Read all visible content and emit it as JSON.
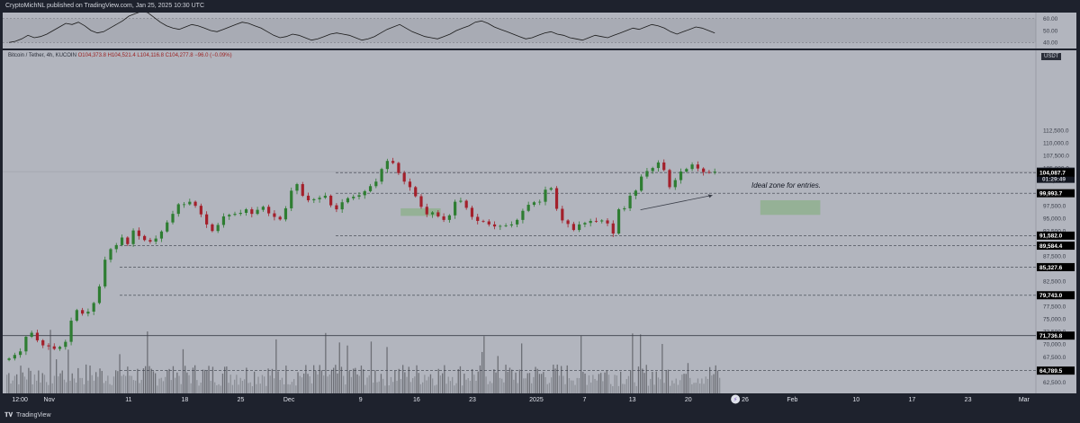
{
  "header": {
    "publish_text": "CryptoMichNL published on TradingView.com, Jan 25, 2025 10:30 UTC"
  },
  "legend": {
    "symbol": "Bitcoin / Tether, 4h, KUCOIN",
    "ohlc": "O104,373.8 H104,521.4 L104,116.8 C104,277.8 −96.0 (−0.09%)"
  },
  "annotation": {
    "text": "Ideal zone for entries."
  },
  "price_scale": {
    "currency": "USDT"
  },
  "footer": {
    "brand": "TradingView"
  },
  "colors": {
    "up": "#2e7d32",
    "down": "#a3202b",
    "pane_bg": "#b2b5be",
    "frame_bg": "#1e222d",
    "zone": "#8fb08f",
    "rsi_line": "#1a1a1a",
    "rsi_band": "#a2a5ad"
  },
  "rsi_scale": [
    "60.00",
    "50.00",
    "40.00"
  ],
  "rsi_data": [
    40,
    41,
    43,
    46,
    44,
    45,
    47,
    50,
    53,
    56,
    55,
    57,
    54,
    50,
    48,
    49,
    52,
    55,
    58,
    62,
    64,
    66,
    65,
    61,
    57,
    54,
    52,
    51,
    53,
    55,
    54,
    52,
    50,
    49,
    51,
    53,
    55,
    57,
    56,
    54,
    52,
    49,
    46,
    44,
    45,
    47,
    46,
    44,
    42,
    43,
    45,
    47,
    48,
    47,
    46,
    44,
    42,
    43,
    45,
    48,
    51,
    53,
    55,
    52,
    49,
    47,
    45,
    44,
    43,
    45,
    47,
    50,
    52,
    54,
    57,
    58,
    56,
    53,
    51,
    49,
    47,
    45,
    43,
    44,
    46,
    48,
    49,
    47,
    46,
    44,
    43,
    42,
    44,
    46,
    45,
    44,
    46,
    48,
    50,
    52,
    51,
    53,
    55,
    54,
    52,
    49,
    47,
    49,
    51,
    53,
    52,
    50,
    48
  ],
  "chart_data": {
    "type": "candlestick",
    "title": "Bitcoin / Tether, 4h, KUCOIN",
    "ylim": [
      61500,
      113000
    ],
    "y_ticks": [
      62500,
      65000,
      67500,
      70000,
      72500,
      75000,
      77500,
      80000,
      82500,
      85000,
      87500,
      90000,
      92500,
      95000,
      97500,
      100000,
      102500,
      105000,
      107500,
      110000,
      112500
    ],
    "x_ticks": [
      "12:00",
      "Nov",
      "11",
      "18",
      "25",
      "Dec",
      "9",
      "16",
      "23",
      "2025",
      "7",
      "13",
      "20",
      "26",
      "Feb",
      "10",
      "17",
      "23",
      "Mar"
    ],
    "x_tick_day_positions": [
      -7.5,
      -4,
      6,
      13,
      20,
      26,
      35,
      42,
      49,
      57,
      63,
      69,
      76,
      82,
      89,
      97,
      104,
      111,
      118
    ],
    "days_shown": [
      -10,
      122
    ],
    "highlighted_x_tick": "26",
    "price_closes": [
      67200,
      67900,
      68600,
      71500,
      72300,
      70800,
      69800,
      69600,
      69100,
      69500,
      70500,
      74700,
      76800,
      76100,
      76500,
      78200,
      81500,
      86800,
      88900,
      89700,
      91200,
      89900,
      92600,
      91500,
      90700,
      90400,
      91000,
      92400,
      94200,
      95900,
      97800,
      97800,
      98300,
      97500,
      95800,
      93800,
      92500,
      93700,
      95400,
      95700,
      95900,
      96100,
      96800,
      95900,
      96700,
      97300,
      96000,
      95300,
      94800,
      97000,
      100500,
      101800,
      99500,
      98600,
      98800,
      99100,
      99500,
      97600,
      96800,
      98200,
      99000,
      99300,
      99600,
      100400,
      101400,
      102300,
      104800,
      106400,
      106000,
      104000,
      102300,
      101200,
      99400,
      97300,
      95800,
      96200,
      95400,
      94700,
      95600,
      98300,
      98500,
      97100,
      95300,
      94500,
      94400,
      93800,
      93400,
      93500,
      93600,
      93800,
      94700,
      96500,
      97700,
      98200,
      98300,
      100700,
      101000,
      96900,
      94600,
      93900,
      92700,
      93800,
      94100,
      94500,
      94400,
      94600,
      94000,
      92000,
      96800,
      97000,
      99500,
      100500,
      103300,
      104400,
      105000,
      106100,
      104600,
      101200,
      102600,
      104300,
      104800,
      105700,
      104900,
      104200,
      104100,
      104277.8
    ],
    "price_levels": [
      {
        "value": 104277.8,
        "label": "104,277.8",
        "style": "last-price"
      },
      {
        "value": 104087.7,
        "label": "104,087.7",
        "style": "dashed"
      },
      {
        "value": 99993.7,
        "label": "99,993.7",
        "style": "dashed"
      },
      {
        "value": 91582.0,
        "label": "91,582.0",
        "style": "dashed"
      },
      {
        "value": 89584.4,
        "label": "89,584.4",
        "style": "dashed"
      },
      {
        "value": 85327.6,
        "label": "85,327.6",
        "style": "dashed"
      },
      {
        "value": 79743.0,
        "label": "79,743.0",
        "style": "dashed"
      },
      {
        "value": 71736.8,
        "label": "71,736.8",
        "style": "solid"
      },
      {
        "value": 64789.5,
        "label": "64,789.5",
        "style": "dashed"
      }
    ],
    "countdown": "01:29:49",
    "zones": [
      {
        "day_from": 40,
        "day_to": 45,
        "price_from": 95500,
        "price_to": 97000
      },
      {
        "day_from": 85,
        "day_to": 92.5,
        "price_from": 95700,
        "price_to": 98600
      }
    ],
    "trend_arrow": {
      "day_from": 70,
      "day_to": 79,
      "price_from": 96700,
      "price_to": 99600
    },
    "volume": {
      "max_bars": 72
    }
  }
}
